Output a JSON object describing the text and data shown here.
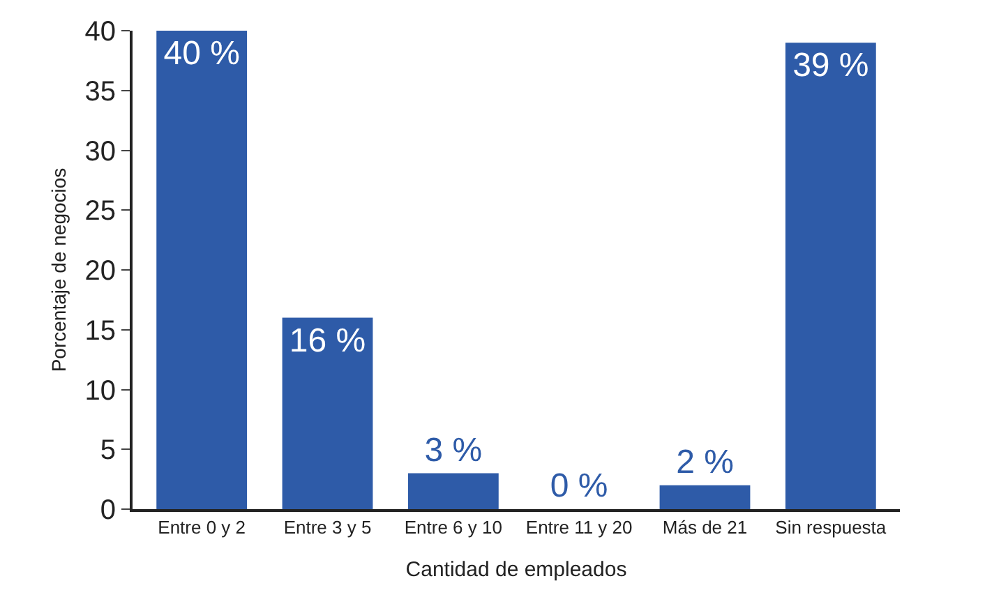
{
  "chart_data": {
    "type": "bar",
    "xlabel": "Cantidad de empleados",
    "ylabel": "Porcentaje de negocios",
    "categories": [
      "Entre 0 y 2",
      "Entre 3 y 5",
      "Entre 6 y 10",
      "Entre 11 y 20",
      "Más de 21",
      "Sin respuesta"
    ],
    "values": [
      40,
      16,
      3,
      0,
      2,
      39
    ],
    "value_labels": [
      "40 %",
      "16 %",
      "3 %",
      "0 %",
      "2 %",
      "39 %"
    ],
    "color": "#2e5ba8",
    "ylim": [
      0,
      40
    ],
    "yticks": [
      0,
      5,
      10,
      15,
      20,
      25,
      30,
      35,
      40
    ],
    "legend": false
  }
}
